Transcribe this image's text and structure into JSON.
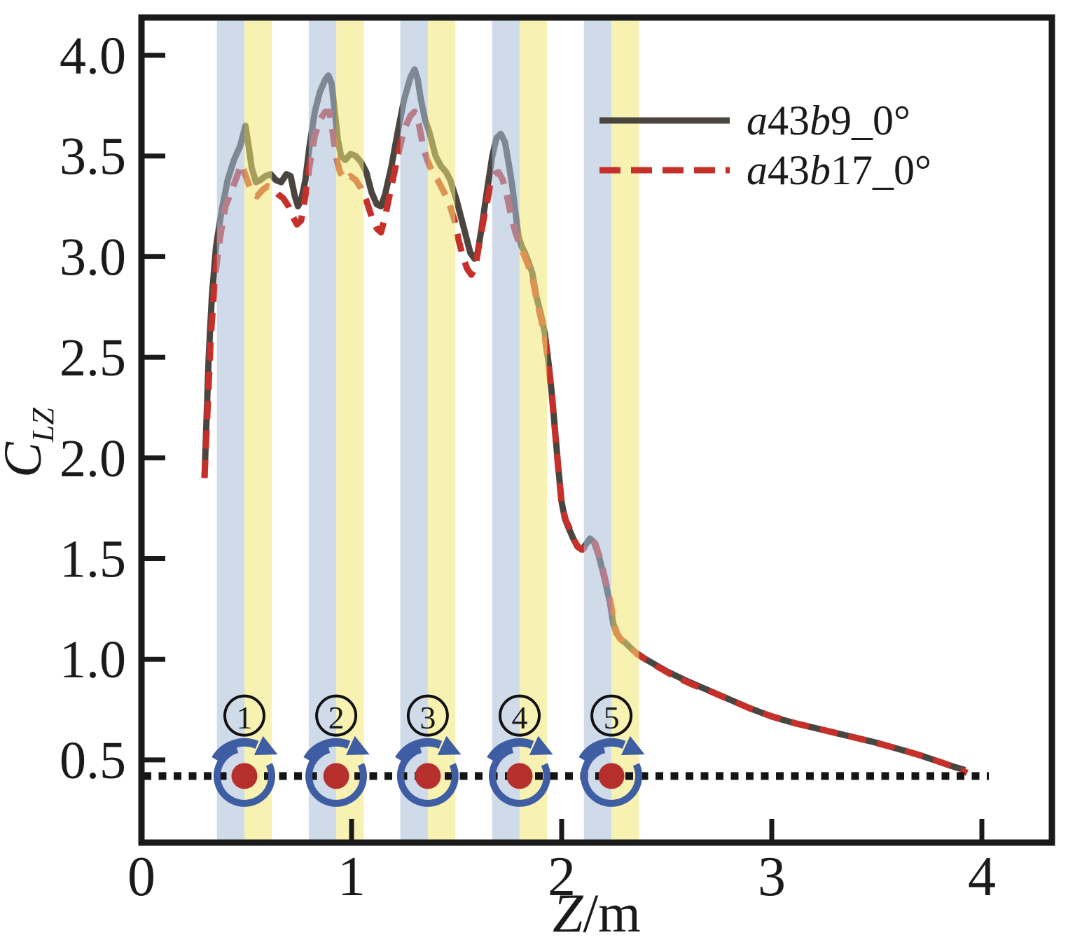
{
  "chart_data": {
    "type": "line",
    "title": "",
    "xlabel_parts": [
      {
        "t": "Z",
        "i": true
      },
      {
        "t": "/m",
        "i": false
      }
    ],
    "ylabel_parts": {
      "base": "C",
      "sub": "LZ"
    },
    "xlim": [
      0,
      4.333
    ],
    "ylim": [
      0.082,
      4.19
    ],
    "xticks": [
      {
        "v": 0,
        "label": "0"
      },
      {
        "v": 1,
        "label": "1"
      },
      {
        "v": 2,
        "label": "2"
      },
      {
        "v": 3,
        "label": "3"
      },
      {
        "v": 4,
        "label": "4"
      }
    ],
    "yticks": [
      {
        "v": 0.5,
        "label": "0.5"
      },
      {
        "v": 1.0,
        "label": "1.0"
      },
      {
        "v": 1.5,
        "label": "1.5"
      },
      {
        "v": 2.0,
        "label": "2.0"
      },
      {
        "v": 2.5,
        "label": "2.5"
      },
      {
        "v": 3.0,
        "label": "3.0"
      },
      {
        "v": 3.5,
        "label": "3.5"
      },
      {
        "v": 4.0,
        "label": "4.0"
      }
    ],
    "grid": false,
    "legend_position": "upper right",
    "series": [
      {
        "name": "a43b9_0°",
        "name_parts": [
          {
            "t": "a",
            "i": true
          },
          {
            "t": "43",
            "i": false
          },
          {
            "t": "b",
            "i": true
          },
          {
            "t": "9_0°",
            "i": false
          }
        ],
        "style": "solid",
        "color": "#4b4540",
        "points": [
          [
            0.3,
            1.9
          ],
          [
            0.31,
            2.2
          ],
          [
            0.32,
            2.5
          ],
          [
            0.335,
            2.8
          ],
          [
            0.355,
            3.05
          ],
          [
            0.38,
            3.22
          ],
          [
            0.41,
            3.38
          ],
          [
            0.44,
            3.48
          ],
          [
            0.47,
            3.55
          ],
          [
            0.495,
            3.65
          ],
          [
            0.51,
            3.55
          ],
          [
            0.525,
            3.44
          ],
          [
            0.545,
            3.37
          ],
          [
            0.565,
            3.38
          ],
          [
            0.59,
            3.4
          ],
          [
            0.615,
            3.41
          ],
          [
            0.64,
            3.38
          ],
          [
            0.665,
            3.37
          ],
          [
            0.69,
            3.41
          ],
          [
            0.71,
            3.4
          ],
          [
            0.73,
            3.3
          ],
          [
            0.745,
            3.25
          ],
          [
            0.76,
            3.28
          ],
          [
            0.78,
            3.38
          ],
          [
            0.8,
            3.55
          ],
          [
            0.825,
            3.72
          ],
          [
            0.85,
            3.82
          ],
          [
            0.875,
            3.88
          ],
          [
            0.89,
            3.9
          ],
          [
            0.905,
            3.86
          ],
          [
            0.92,
            3.72
          ],
          [
            0.935,
            3.58
          ],
          [
            0.95,
            3.5
          ],
          [
            0.97,
            3.48
          ],
          [
            0.995,
            3.51
          ],
          [
            1.02,
            3.5
          ],
          [
            1.045,
            3.47
          ],
          [
            1.07,
            3.42
          ],
          [
            1.095,
            3.32
          ],
          [
            1.12,
            3.26
          ],
          [
            1.14,
            3.25
          ],
          [
            1.16,
            3.31
          ],
          [
            1.19,
            3.45
          ],
          [
            1.22,
            3.62
          ],
          [
            1.25,
            3.78
          ],
          [
            1.28,
            3.89
          ],
          [
            1.3,
            3.93
          ],
          [
            1.315,
            3.88
          ],
          [
            1.33,
            3.78
          ],
          [
            1.35,
            3.68
          ],
          [
            1.37,
            3.62
          ],
          [
            1.4,
            3.5
          ],
          [
            1.425,
            3.45
          ],
          [
            1.45,
            3.42
          ],
          [
            1.47,
            3.38
          ],
          [
            1.5,
            3.28
          ],
          [
            1.52,
            3.2
          ],
          [
            1.545,
            3.1
          ],
          [
            1.565,
            3.02
          ],
          [
            1.585,
            2.99
          ],
          [
            1.6,
            3.02
          ],
          [
            1.62,
            3.15
          ],
          [
            1.645,
            3.33
          ],
          [
            1.67,
            3.5
          ],
          [
            1.69,
            3.59
          ],
          [
            1.71,
            3.61
          ],
          [
            1.73,
            3.57
          ],
          [
            1.75,
            3.45
          ],
          [
            1.765,
            3.35
          ],
          [
            1.78,
            3.22
          ],
          [
            1.795,
            3.1
          ],
          [
            1.81,
            3.05
          ],
          [
            1.825,
            3.02
          ],
          [
            1.84,
            2.98
          ],
          [
            1.86,
            2.92
          ],
          [
            1.88,
            2.8
          ],
          [
            1.9,
            2.72
          ],
          [
            1.92,
            2.62
          ],
          [
            1.94,
            2.45
          ],
          [
            1.955,
            2.3
          ],
          [
            1.97,
            2.12
          ],
          [
            1.985,
            1.94
          ],
          [
            2.0,
            1.78
          ],
          [
            2.015,
            1.7
          ],
          [
            2.03,
            1.66
          ],
          [
            2.055,
            1.6
          ],
          [
            2.075,
            1.56
          ],
          [
            2.095,
            1.545
          ],
          [
            2.115,
            1.57
          ],
          [
            2.135,
            1.6
          ],
          [
            2.155,
            1.58
          ],
          [
            2.175,
            1.52
          ],
          [
            2.195,
            1.44
          ],
          [
            2.215,
            1.35
          ],
          [
            2.23,
            1.28
          ],
          [
            2.245,
            1.18
          ],
          [
            2.26,
            1.13
          ],
          [
            2.28,
            1.1
          ],
          [
            2.3,
            1.085
          ],
          [
            2.35,
            1.035
          ],
          [
            2.4,
            1.0
          ],
          [
            2.5,
            0.94
          ],
          [
            2.6,
            0.89
          ],
          [
            2.7,
            0.845
          ],
          [
            2.8,
            0.8
          ],
          [
            2.9,
            0.755
          ],
          [
            3.0,
            0.715
          ],
          [
            3.1,
            0.685
          ],
          [
            3.2,
            0.66
          ],
          [
            3.3,
            0.635
          ],
          [
            3.4,
            0.61
          ],
          [
            3.5,
            0.585
          ],
          [
            3.6,
            0.555
          ],
          [
            3.7,
            0.525
          ],
          [
            3.8,
            0.49
          ],
          [
            3.87,
            0.465
          ],
          [
            3.92,
            0.45
          ]
        ]
      },
      {
        "name": "a43b17_0°",
        "name_parts": [
          {
            "t": "a",
            "i": true
          },
          {
            "t": "43",
            "i": false
          },
          {
            "t": "b",
            "i": true
          },
          {
            "t": "17_0°",
            "i": false
          }
        ],
        "style": "dashed",
        "color": "#c6302a",
        "points": [
          [
            0.3,
            1.9
          ],
          [
            0.315,
            2.25
          ],
          [
            0.33,
            2.6
          ],
          [
            0.35,
            2.9
          ],
          [
            0.375,
            3.1
          ],
          [
            0.4,
            3.25
          ],
          [
            0.43,
            3.33
          ],
          [
            0.455,
            3.4
          ],
          [
            0.475,
            3.46
          ],
          [
            0.49,
            3.42
          ],
          [
            0.51,
            3.36
          ],
          [
            0.53,
            3.31
          ],
          [
            0.55,
            3.3
          ],
          [
            0.575,
            3.33
          ],
          [
            0.6,
            3.35
          ],
          [
            0.625,
            3.34
          ],
          [
            0.65,
            3.31
          ],
          [
            0.675,
            3.29
          ],
          [
            0.7,
            3.25
          ],
          [
            0.72,
            3.2
          ],
          [
            0.74,
            3.16
          ],
          [
            0.76,
            3.18
          ],
          [
            0.78,
            3.3
          ],
          [
            0.8,
            3.45
          ],
          [
            0.825,
            3.6
          ],
          [
            0.85,
            3.68
          ],
          [
            0.875,
            3.72
          ],
          [
            0.895,
            3.72
          ],
          [
            0.91,
            3.62
          ],
          [
            0.925,
            3.5
          ],
          [
            0.945,
            3.42
          ],
          [
            0.97,
            3.38
          ],
          [
            0.995,
            3.4
          ],
          [
            1.02,
            3.38
          ],
          [
            1.045,
            3.34
          ],
          [
            1.07,
            3.28
          ],
          [
            1.095,
            3.2
          ],
          [
            1.12,
            3.14
          ],
          [
            1.14,
            3.12
          ],
          [
            1.16,
            3.2
          ],
          [
            1.19,
            3.35
          ],
          [
            1.22,
            3.5
          ],
          [
            1.25,
            3.63
          ],
          [
            1.28,
            3.7
          ],
          [
            1.3,
            3.72
          ],
          [
            1.32,
            3.66
          ],
          [
            1.34,
            3.55
          ],
          [
            1.36,
            3.48
          ],
          [
            1.385,
            3.42
          ],
          [
            1.41,
            3.38
          ],
          [
            1.435,
            3.33
          ],
          [
            1.46,
            3.28
          ],
          [
            1.49,
            3.18
          ],
          [
            1.51,
            3.08
          ],
          [
            1.53,
            3.0
          ],
          [
            1.55,
            2.94
          ],
          [
            1.57,
            2.91
          ],
          [
            1.59,
            2.95
          ],
          [
            1.61,
            3.08
          ],
          [
            1.635,
            3.22
          ],
          [
            1.66,
            3.35
          ],
          [
            1.68,
            3.41
          ],
          [
            1.7,
            3.42
          ],
          [
            1.72,
            3.38
          ],
          [
            1.74,
            3.3
          ],
          [
            1.76,
            3.2
          ],
          [
            1.78,
            3.12
          ],
          [
            1.8,
            3.06
          ],
          [
            1.82,
            3.01
          ],
          [
            1.84,
            2.96
          ],
          [
            1.86,
            2.9
          ],
          [
            1.88,
            2.79
          ],
          [
            1.9,
            2.7
          ],
          [
            1.92,
            2.6
          ],
          [
            1.94,
            2.44
          ],
          [
            1.955,
            2.29
          ],
          [
            1.97,
            2.11
          ],
          [
            1.985,
            1.93
          ],
          [
            2.0,
            1.77
          ],
          [
            2.02,
            1.69
          ],
          [
            2.04,
            1.645
          ],
          [
            2.06,
            1.59
          ],
          [
            2.08,
            1.555
          ],
          [
            2.1,
            1.545
          ],
          [
            2.12,
            1.57
          ],
          [
            2.14,
            1.595
          ],
          [
            2.16,
            1.575
          ],
          [
            2.18,
            1.51
          ],
          [
            2.2,
            1.43
          ],
          [
            2.22,
            1.34
          ],
          [
            2.235,
            1.27
          ],
          [
            2.25,
            1.17
          ],
          [
            2.265,
            1.125
          ],
          [
            2.285,
            1.095
          ],
          [
            2.31,
            1.075
          ],
          [
            2.36,
            1.025
          ],
          [
            2.42,
            0.985
          ],
          [
            2.52,
            0.925
          ],
          [
            2.62,
            0.875
          ],
          [
            2.72,
            0.835
          ],
          [
            2.82,
            0.79
          ],
          [
            2.92,
            0.745
          ],
          [
            3.02,
            0.71
          ],
          [
            3.12,
            0.68
          ],
          [
            3.22,
            0.655
          ],
          [
            3.32,
            0.63
          ],
          [
            3.42,
            0.605
          ],
          [
            3.52,
            0.578
          ],
          [
            3.62,
            0.55
          ],
          [
            3.72,
            0.518
          ],
          [
            3.82,
            0.483
          ],
          [
            3.9,
            0.45
          ],
          [
            3.93,
            0.435
          ]
        ]
      }
    ],
    "bands": {
      "centers": [
        0.49,
        0.927,
        1.363,
        1.8,
        2.237
      ],
      "half_width": 0.131,
      "blue_color": "#a9bdd8",
      "yellow_color": "#f0e573",
      "opacity": 0.55
    },
    "rotor_markers": {
      "line_y": 0.42,
      "line_color": "#141414",
      "centers": [
        0.49,
        0.927,
        1.363,
        1.8,
        2.237
      ],
      "labels": [
        "1",
        "2",
        "3",
        "4",
        "5"
      ],
      "label_y": 0.72,
      "ring_color": "#3f5da3",
      "dot_color": "#b5302c"
    },
    "colors": {
      "axis": "#1a1a1a",
      "background": "#ffffff"
    }
  }
}
